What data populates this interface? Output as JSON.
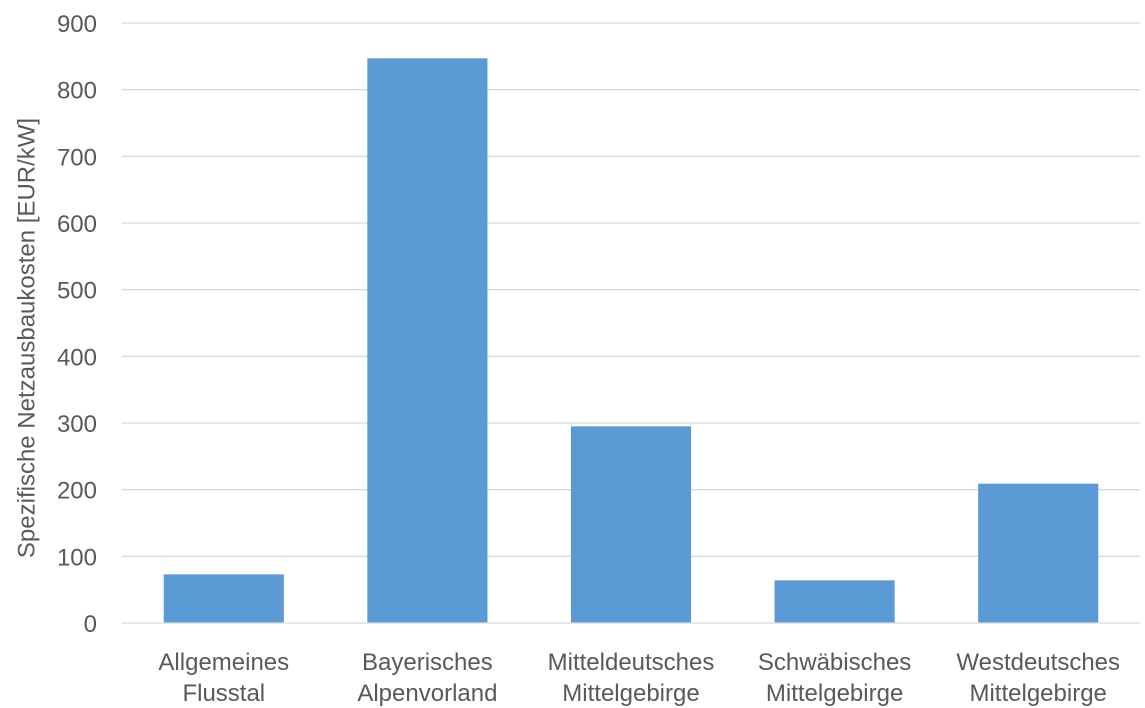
{
  "chart_data": {
    "type": "bar",
    "categories": [
      [
        "Allgemeines",
        "Flusstal"
      ],
      [
        "Bayerisches",
        "Alpenvorland"
      ],
      [
        "Mitteldeutsches",
        "Mittelgebirge"
      ],
      [
        "Schwäbisches",
        "Mittelgebirge"
      ],
      [
        "Westdeutsches",
        "Mittelgebirge"
      ]
    ],
    "values": [
      73,
      847,
      295,
      64,
      209
    ],
    "title": "",
    "xlabel": "",
    "ylabel": "Spezifische Netzausbaukosten [EUR/kW]",
    "ylim": [
      0,
      900
    ],
    "yticks": [
      "0",
      "100",
      "200",
      "300",
      "400",
      "500",
      "600",
      "700",
      "800",
      "900"
    ],
    "grid": true,
    "legend": "none",
    "bar_color": "#5b9bd5"
  }
}
